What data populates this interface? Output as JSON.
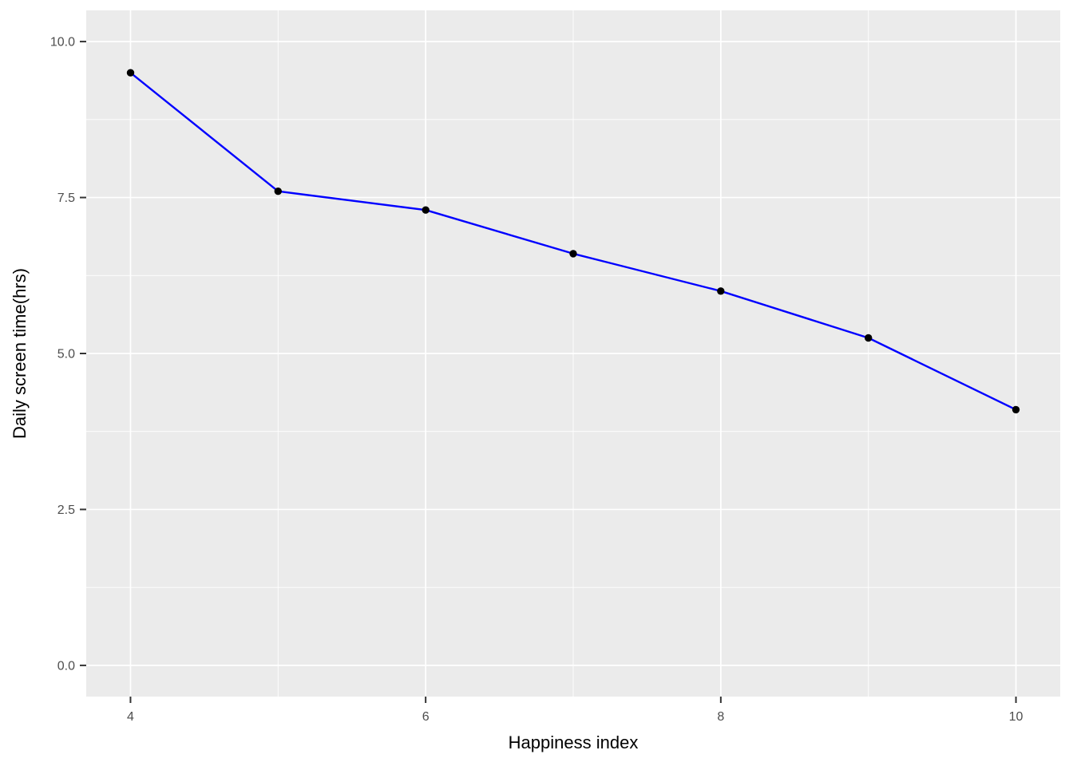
{
  "chart_data": {
    "type": "line",
    "title": "",
    "xlabel": "Happiness index",
    "ylabel": "Daily screen time(hrs)",
    "x": [
      4,
      5,
      6,
      7,
      8,
      9,
      10
    ],
    "series": [
      {
        "name": "daily_screen_time_hrs",
        "values": [
          9.5,
          7.6,
          7.3,
          6.6,
          6.0,
          5.25,
          4.1
        ]
      }
    ],
    "xlim": [
      3.7,
      10.3
    ],
    "ylim": [
      -0.5,
      10.5
    ],
    "x_ticks": [
      4,
      6,
      8,
      10
    ],
    "x_tick_labels": [
      "4",
      "6",
      "8",
      "10"
    ],
    "x_minor_gridlines": [
      5,
      7,
      9
    ],
    "y_ticks": [
      0,
      2.5,
      5,
      7.5,
      10
    ],
    "y_tick_labels": [
      "0.0",
      "2.5",
      "5.0",
      "7.5",
      "10.0"
    ],
    "y_minor_gridlines": [
      1.25,
      3.75,
      6.25,
      8.75
    ],
    "grid": true,
    "legend_position": "none",
    "style": {
      "panel_background": "#EBEBEB",
      "outer_background": "#FFFFFF",
      "grid_major_color": "#FFFFFF",
      "grid_minor_color": "#FFFFFF",
      "line_color": "#0000FF",
      "point_color": "#000000",
      "tick_mark_color": "#333333",
      "tick_label_color": "#4D4D4D",
      "axis_title_color": "#000000"
    }
  }
}
